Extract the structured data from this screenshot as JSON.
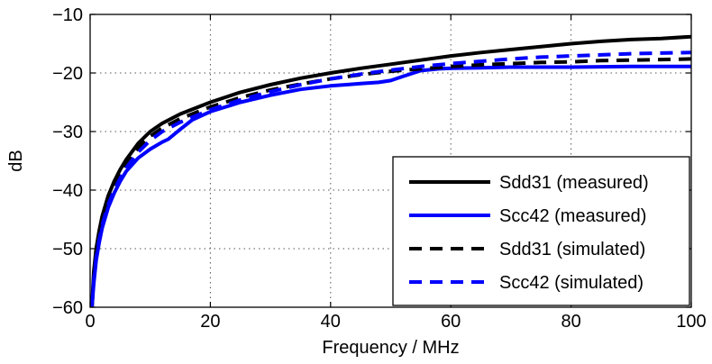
{
  "chart_data": {
    "type": "line",
    "title": "",
    "xlabel": "Frequency / MHz",
    "ylabel": "dB",
    "xlim": [
      0,
      100
    ],
    "ylim": [
      -60,
      -10
    ],
    "xticks": [
      0,
      20,
      40,
      60,
      80,
      100
    ],
    "yticks": [
      -60,
      -50,
      -40,
      -30,
      -20,
      -10
    ],
    "xtick_labels": [
      "0",
      "20",
      "40",
      "60",
      "80",
      "100"
    ],
    "ytick_labels": [
      "−60",
      "−50",
      "−40",
      "−30",
      "−20",
      "−10"
    ],
    "grid": true,
    "legend_position": "bottom-right",
    "series": [
      {
        "name": "Sdd31 (measured)",
        "color": "#000000",
        "style": "solid",
        "x": [
          0.3,
          0.6,
          1,
          1.5,
          2,
          3,
          4,
          5,
          6,
          8,
          10,
          12,
          15,
          20,
          25,
          30,
          35,
          40,
          45,
          50,
          55,
          60,
          65,
          70,
          75,
          80,
          85,
          90,
          95,
          100
        ],
        "y": [
          -60,
          -54,
          -50,
          -47,
          -44.5,
          -41,
          -38.5,
          -36.5,
          -34.8,
          -32,
          -30,
          -28.6,
          -27,
          -25,
          -23.3,
          -22,
          -20.9,
          -20,
          -19.2,
          -18.5,
          -17.8,
          -17.1,
          -16.5,
          -16,
          -15.5,
          -15,
          -14.6,
          -14.3,
          -14.1,
          -13.8
        ]
      },
      {
        "name": "Scc42 (measured)",
        "color": "#0000ff",
        "style": "solid",
        "x": [
          0.3,
          0.6,
          1,
          1.5,
          2,
          3,
          4,
          5,
          6,
          8,
          10,
          12,
          13,
          15,
          17,
          20,
          25,
          30,
          35,
          40,
          45,
          48,
          50,
          52,
          55,
          58,
          60,
          65,
          70,
          80,
          90,
          100
        ],
        "y": [
          -60,
          -56,
          -52,
          -49,
          -46.5,
          -43,
          -40.5,
          -38.5,
          -36.8,
          -34.5,
          -33,
          -31.8,
          -31.3,
          -29.6,
          -28,
          -26.6,
          -25,
          -23.8,
          -22.8,
          -22.2,
          -21.8,
          -21.6,
          -21.3,
          -20.6,
          -19.6,
          -19.3,
          -19.2,
          -19.1,
          -19.0,
          -19.0,
          -18.9,
          -18.9
        ]
      },
      {
        "name": "Sdd31 (simulated)",
        "color": "#000000",
        "style": "dashed",
        "x": [
          0.3,
          0.6,
          1,
          1.5,
          2,
          3,
          4,
          5,
          6,
          8,
          10,
          12,
          15,
          20,
          25,
          30,
          35,
          40,
          45,
          50,
          55,
          60,
          65,
          70,
          75,
          80,
          85,
          90,
          95,
          100
        ],
        "y": [
          -60,
          -55,
          -51,
          -48,
          -45.5,
          -42,
          -39.5,
          -37.5,
          -35.6,
          -32.8,
          -30.8,
          -29.4,
          -27.8,
          -25.8,
          -24.2,
          -22.9,
          -21.9,
          -21,
          -20.3,
          -19.7,
          -19.3,
          -18.9,
          -18.6,
          -18.4,
          -18.2,
          -18.1,
          -17.9,
          -17.8,
          -17.7,
          -17.6
        ]
      },
      {
        "name": "Scc42 (simulated)",
        "color": "#0000ff",
        "style": "dashed",
        "x": [
          0.3,
          0.6,
          1,
          1.5,
          2,
          3,
          4,
          5,
          6,
          8,
          10,
          12,
          15,
          20,
          25,
          30,
          35,
          40,
          45,
          50,
          55,
          60,
          65,
          70,
          75,
          80,
          85,
          90,
          95,
          100
        ],
        "y": [
          -60,
          -55.5,
          -51.5,
          -48.5,
          -46,
          -42.5,
          -40,
          -38,
          -36.2,
          -33.5,
          -31.5,
          -30,
          -28.4,
          -26.3,
          -24.6,
          -23.2,
          -22,
          -21,
          -20.2,
          -19.5,
          -18.9,
          -18.4,
          -18,
          -17.6,
          -17.3,
          -17.1,
          -16.9,
          -16.7,
          -16.6,
          -16.5
        ]
      }
    ]
  }
}
